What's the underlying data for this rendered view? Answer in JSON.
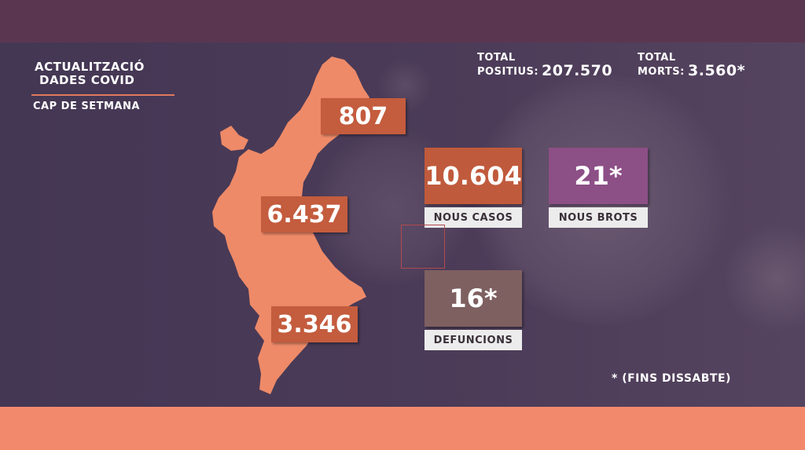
{
  "title": {
    "line1": "ACTUALITZACIÓ",
    "line2": "DADES COVID",
    "subtitle": "CAP DE SETMANA"
  },
  "totals": {
    "positives_label_1": "TOTAL",
    "positives_label_2": "POSITIUS:",
    "positives_value": "207.570",
    "deaths_label_1": "TOTAL",
    "deaths_label_2": "MORTS:",
    "deaths_value": "3.560*"
  },
  "provinces": {
    "castello": "807",
    "valencia": "6.437",
    "alacant": "3.346"
  },
  "stats": {
    "new_cases_value": "10.604",
    "new_cases_label": "NOUS CASOS",
    "new_outbreaks_value": "21*",
    "new_outbreaks_label": "NOUS BROTS",
    "deaths_value": "16*",
    "deaths_label": "DEFUNCIONS"
  },
  "footnote": "* (FINS DISSABTE)",
  "colors": {
    "map": "#ee8a68",
    "province_box": "#c45c3e",
    "cases_box": "#c05a3c",
    "outbreaks_box": "#8c4f86",
    "deaths_box": "#7e6061",
    "bottom_band": "#f2896d"
  }
}
